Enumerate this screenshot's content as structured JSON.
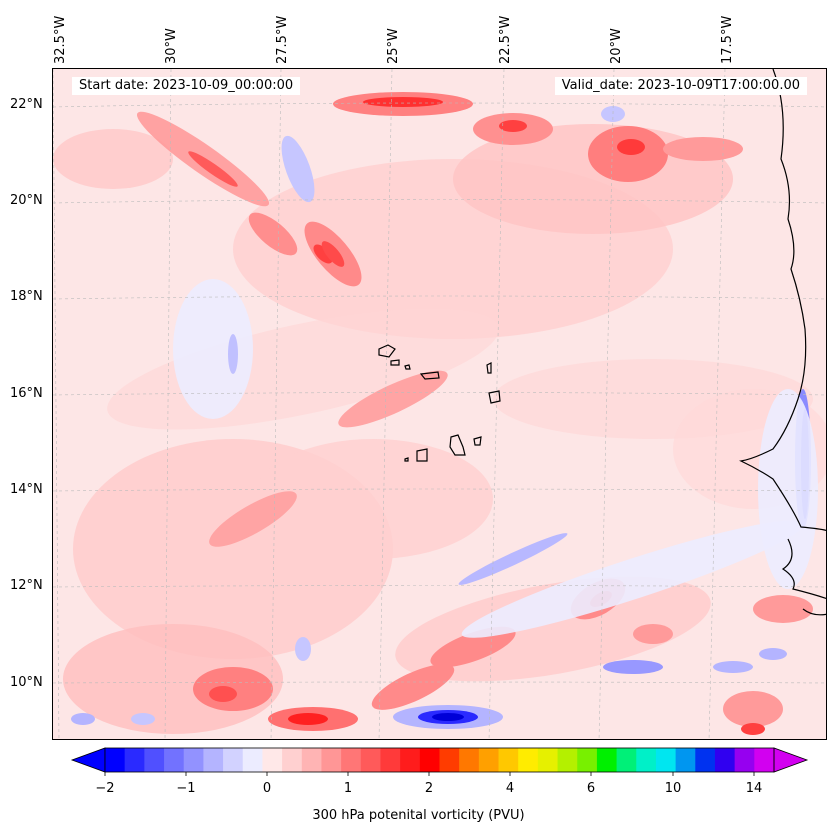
{
  "map": {
    "start_date": "Start date: 2023-10-09_00:00:00",
    "valid_date": "Valid_date: 2023-10-09T17:00:00.00",
    "lat_labels": [
      "22°N",
      "20°N",
      "18°N",
      "16°N",
      "14°N",
      "12°N",
      "10°N"
    ],
    "lon_labels": [
      "32.5°W",
      "30°W",
      "27.5°W",
      "25°W",
      "22.5°W",
      "20°W",
      "17.5°W"
    ],
    "background_color": "#fde6e6"
  },
  "colorbar": {
    "label": "300 hPa potenital vorticity (PVU)",
    "tick_labels": [
      "−2",
      "−1",
      "0",
      "1",
      "2",
      "4",
      "6",
      "10",
      "14"
    ],
    "colors": [
      "#0000ff",
      "#2a2aff",
      "#5050ff",
      "#7272ff",
      "#9292ff",
      "#b4b4ff",
      "#d2d2ff",
      "#ececff",
      "#ffe8e8",
      "#ffd0d0",
      "#ffb4b4",
      "#ff9696",
      "#ff7676",
      "#ff5a5a",
      "#ff3a3a",
      "#ff1c1c",
      "#ff0000",
      "#ff3c00",
      "#ff7800",
      "#ffa000",
      "#ffc800",
      "#ffec00",
      "#e6f000",
      "#b4f000",
      "#78f000",
      "#00f000",
      "#00f078",
      "#00f0c8",
      "#00e6f0",
      "#0096f0",
      "#0032f0",
      "#3000f0",
      "#9600f0",
      "#d200f0"
    ],
    "extend_min_color": "#0000ff",
    "extend_max_color": "#d200f0"
  }
}
